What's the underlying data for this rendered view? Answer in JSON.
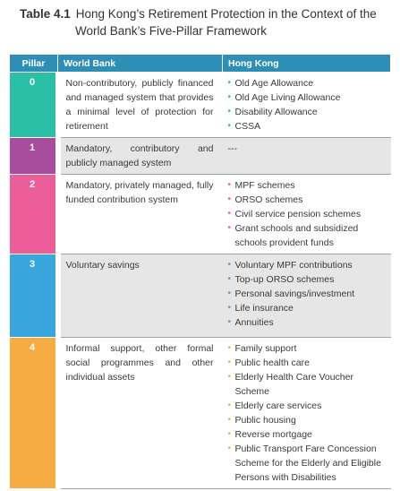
{
  "caption": {
    "number": "Table 4.1",
    "line1": "Hong Kong’s Retirement Protection in the Context of the",
    "line2": "World Bank’s Five-Pillar Framework"
  },
  "headers": {
    "pillar": "Pillar",
    "world_bank": "World Bank",
    "hong_kong": "Hong Kong"
  },
  "colors": {
    "header": "#2e8fb6",
    "pillar0": "#2bbfa8",
    "pillar1": "#a84c9e",
    "pillar2": "#ec5e9a",
    "pillar3": "#3aa6de",
    "pillar4": "#f7ab43"
  },
  "rows": [
    {
      "pillar": "0",
      "world_bank": "Non-contributory, publicly financed and managed system that provides a minimal level of protection for retirement",
      "hong_kong": [
        "Old Age Allowance",
        "Old Age Living Allowance",
        "Disability Allowance",
        "CSSA"
      ]
    },
    {
      "pillar": "1",
      "world_bank": "Mandatory, contributory and publicly managed system",
      "hong_kong_text": "---"
    },
    {
      "pillar": "2",
      "world_bank": "Mandatory, privately managed, fully funded contribution system",
      "hong_kong": [
        "MPF schemes",
        "ORSO schemes",
        "Civil service pension schemes",
        "Grant schools and subsidized schools provident funds"
      ]
    },
    {
      "pillar": "3",
      "world_bank": "Voluntary savings",
      "hong_kong": [
        "Voluntary MPF contributions",
        "Top-up ORSO schemes",
        "Personal savings/investment",
        "Life insurance",
        "Annuities"
      ]
    },
    {
      "pillar": "4",
      "world_bank": "Informal support, other formal social programmes and other individual assets",
      "hong_kong": [
        "Family support",
        "Public health care",
        "Elderly Health Care Voucher Scheme",
        "Elderly care services",
        "Public housing",
        "Reverse mortgage",
        "Public Transport Fare Concession Scheme for the Elderly and Eligible Persons with Disabilities"
      ]
    }
  ],
  "bullet": "•"
}
